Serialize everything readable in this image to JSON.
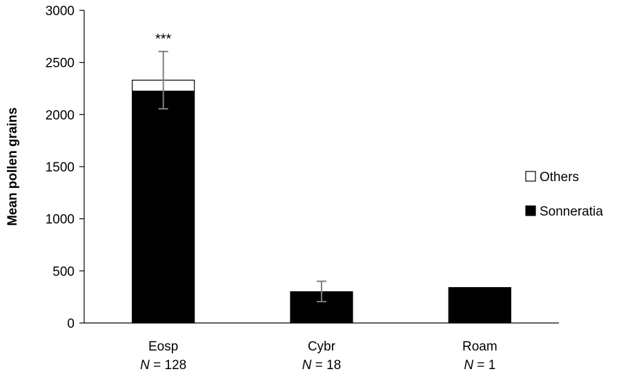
{
  "chart_data": {
    "type": "bar",
    "stacked": true,
    "ylabel": "Mean pollen grains",
    "xlabel": "",
    "ylim": [
      0,
      3000
    ],
    "yticks": [
      0,
      500,
      1000,
      1500,
      2000,
      2500,
      3000
    ],
    "categories": [
      "Eosp",
      "Cybr",
      "Roam"
    ],
    "sample_sizes": [
      "N = 128",
      "N = 18",
      "N = 1"
    ],
    "n_prefix": "N",
    "n_values": [
      "128",
      "18",
      "1"
    ],
    "series": [
      {
        "name": "Sonneratia",
        "color": "#000000",
        "values": [
          2225,
          300,
          340
        ]
      },
      {
        "name": "Others",
        "color": "#ffffff",
        "values": [
          105,
          0,
          0
        ]
      }
    ],
    "error_bars": [
      {
        "category": "Eosp",
        "low": 2055,
        "high": 2605
      },
      {
        "category": "Cybr",
        "low": 205,
        "high": 400
      },
      {
        "category": "Roam",
        "low": null,
        "high": null
      }
    ],
    "annotations": [
      {
        "category": "Eosp",
        "text": "***"
      }
    ],
    "legend": {
      "placement": "right",
      "items": [
        {
          "label": "Others",
          "color": "#ffffff"
        },
        {
          "label": "Sonneratia",
          "color": "#000000"
        }
      ]
    },
    "grid": false
  }
}
